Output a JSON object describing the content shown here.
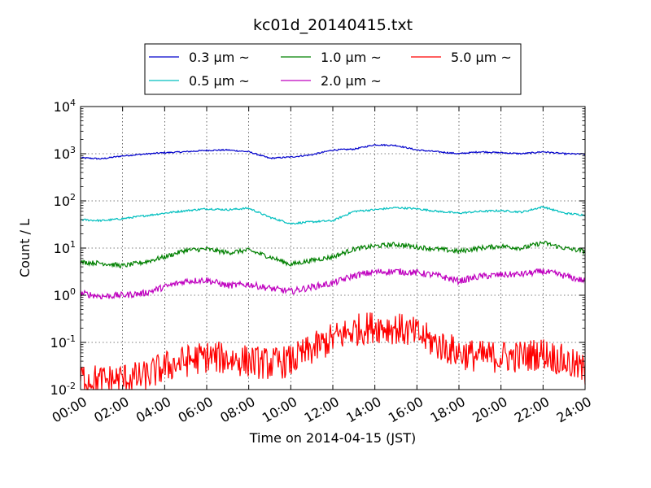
{
  "chart_data": {
    "type": "line",
    "title": "kc01d_20140415.txt",
    "xlabel": "Time on 2014-04-15 (JST)",
    "ylabel": "Count / L",
    "xlim": [
      "2014-04-15 00:00",
      "2014-04-16 00:00"
    ],
    "ylim": [
      0.01,
      10000
    ],
    "yscale": "log",
    "grid": true,
    "legend_position": "top-center",
    "x_tick_labels": [
      "00:00",
      "02:00",
      "04:00",
      "06:00",
      "08:00",
      "10:00",
      "12:00",
      "14:00",
      "16:00",
      "18:00",
      "20:00",
      "22:00",
      "24:00"
    ],
    "y_tick_labels": [
      {
        "base": "10",
        "exp": "-2",
        "value": 0.01
      },
      {
        "base": "10",
        "exp": "-1",
        "value": 0.1
      },
      {
        "base": "10",
        "exp": "0",
        "value": 1
      },
      {
        "base": "10",
        "exp": "1",
        "value": 10
      },
      {
        "base": "10",
        "exp": "2",
        "value": 100
      },
      {
        "base": "10",
        "exp": "3",
        "value": 1000
      },
      {
        "base": "10",
        "exp": "4",
        "value": 10000
      }
    ],
    "x_hours": [
      0,
      1,
      2,
      3,
      4,
      5,
      6,
      7,
      8,
      9,
      10,
      11,
      12,
      13,
      14,
      15,
      16,
      17,
      18,
      19,
      20,
      21,
      22,
      23,
      24
    ],
    "series": [
      {
        "name": "0.3 μm ~",
        "color": "#0000cc",
        "noise": 0.015,
        "values": [
          820,
          780,
          900,
          980,
          1050,
          1100,
          1180,
          1200,
          1100,
          800,
          850,
          950,
          1200,
          1250,
          1550,
          1500,
          1200,
          1100,
          1000,
          1100,
          1050,
          1000,
          1100,
          1000,
          980
        ]
      },
      {
        "name": "0.5 μm ~",
        "color": "#00bfbf",
        "noise": 0.02,
        "values": [
          40,
          38,
          42,
          48,
          55,
          62,
          68,
          65,
          70,
          45,
          33,
          36,
          38,
          60,
          65,
          72,
          68,
          60,
          55,
          60,
          62,
          58,
          75,
          55,
          50
        ]
      },
      {
        "name": "1.0 μm ~",
        "color": "#008000",
        "noise": 0.05,
        "values": [
          5,
          4.8,
          4.2,
          5,
          6.5,
          9,
          9.5,
          8,
          9,
          6.5,
          4.5,
          5.5,
          6.5,
          9.5,
          11,
          12,
          10.5,
          9.5,
          8.5,
          10,
          11,
          10,
          13,
          10,
          8.5
        ]
      },
      {
        "name": "2.0 μm ~",
        "color": "#bf00bf",
        "noise": 0.07,
        "values": [
          1.1,
          0.95,
          1,
          1.1,
          1.5,
          2,
          2.1,
          1.6,
          1.7,
          1.4,
          1.2,
          1.5,
          1.8,
          2.6,
          3.1,
          3.2,
          3,
          2.6,
          2,
          2.5,
          2.7,
          2.8,
          3.2,
          2.6,
          2
        ]
      },
      {
        "name": "5.0 μm ~",
        "color": "#ff0000",
        "noise": 0.35,
        "values": [
          0.018,
          0.015,
          0.017,
          0.018,
          0.03,
          0.04,
          0.05,
          0.045,
          0.04,
          0.035,
          0.04,
          0.07,
          0.12,
          0.18,
          0.22,
          0.2,
          0.15,
          0.09,
          0.06,
          0.05,
          0.05,
          0.05,
          0.06,
          0.04,
          0.025
        ]
      }
    ]
  }
}
